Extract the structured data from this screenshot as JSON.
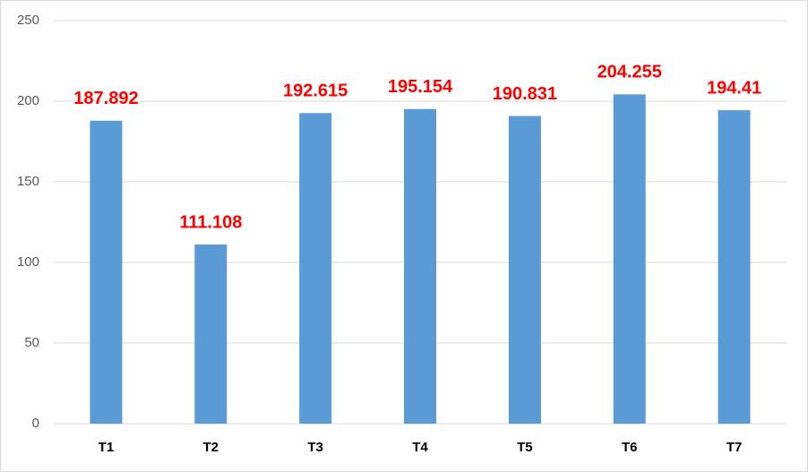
{
  "chart_data": {
    "type": "bar",
    "categories": [
      "T1",
      "T2",
      "T3",
      "T4",
      "T5",
      "T6",
      "T7"
    ],
    "values": [
      187.892,
      111.108,
      192.615,
      195.154,
      190.831,
      204.255,
      194.41
    ],
    "color": "#5b9bd5",
    "label_color": "#ff0000",
    "ylim": [
      0,
      250
    ],
    "yticks": [
      0,
      50,
      100,
      150,
      200,
      250
    ],
    "grid": true
  }
}
